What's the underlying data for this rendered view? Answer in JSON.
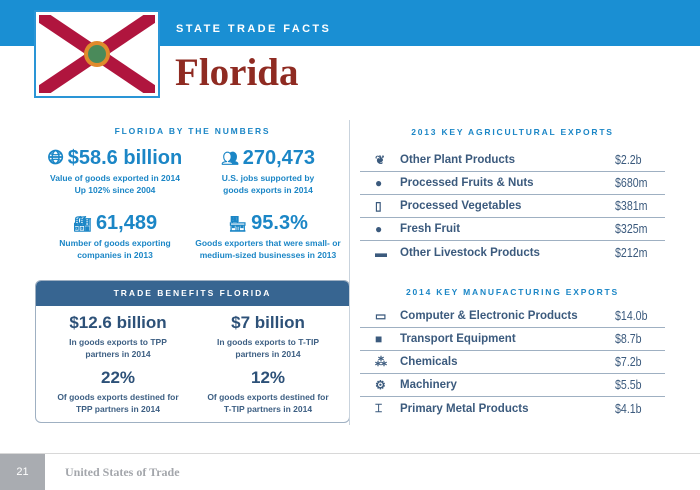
{
  "header": {
    "kicker": "STATE TRADE FACTS",
    "title": "Florida"
  },
  "numbers": {
    "heading": "FLORIDA BY THE NUMBERS",
    "stats": [
      {
        "icon": "globe-icon",
        "value": "$58.6 billion",
        "line1": "Value of goods exported in 2014",
        "line2": "Up 102% since 2004"
      },
      {
        "icon": "workers-icon",
        "value": "270,473",
        "line1": "U.S. jobs supported by",
        "line2": "goods exports in 2014"
      },
      {
        "icon": "factory-icon",
        "value": "61,489",
        "line1": "Number of goods exporting",
        "line2": "companies in 2013"
      },
      {
        "icon": "storefront-icon",
        "value": "95.3%",
        "line1": "Goods exporters that were small- or",
        "line2": "medium-sized businesses in 2013"
      }
    ]
  },
  "benefits": {
    "heading": "TRADE BENEFITS FLORIDA",
    "stats": [
      {
        "value": "$12.6 billion",
        "line1": "In goods exports to TPP",
        "line2": "partners in 2014"
      },
      {
        "value": "$7 billion",
        "line1": "In goods exports to T-TIP",
        "line2": "partners in 2014"
      },
      {
        "value": "22%",
        "line1": "Of goods exports destined for",
        "line2": "TPP partners in 2014"
      },
      {
        "value": "12%",
        "line1": "Of goods exports destined for",
        "line2": "T-TIP partners in 2014"
      }
    ]
  },
  "agri": {
    "heading": "2013 KEY AGRICULTURAL EXPORTS",
    "items": [
      {
        "icon": "plant-icon",
        "label": "Other Plant Products",
        "value": "$2.2b"
      },
      {
        "icon": "acorn-icon",
        "label": "Processed Fruits & Nuts",
        "value": "$680m"
      },
      {
        "icon": "jar-icon",
        "label": "Processed Vegetables",
        "value": "$381m"
      },
      {
        "icon": "fruit-icon",
        "label": "Fresh Fruit",
        "value": "$325m"
      },
      {
        "icon": "cow-icon",
        "label": "Other Livestock Products",
        "value": "$212m"
      }
    ]
  },
  "manu": {
    "heading": "2014 KEY MANUFACTURING EXPORTS",
    "items": [
      {
        "icon": "computer-icon",
        "label": "Computer & Electronic Products",
        "value": "$14.0b"
      },
      {
        "icon": "truck-icon",
        "label": "Transport Equipment",
        "value": "$8.7b"
      },
      {
        "icon": "molecule-icon",
        "label": "Chemicals",
        "value": "$7.2b"
      },
      {
        "icon": "gears-icon",
        "label": "Machinery",
        "value": "$5.5b"
      },
      {
        "icon": "metal-beam-icon",
        "label": "Primary Metal Products",
        "value": "$4.1b"
      }
    ]
  },
  "footer": {
    "page": "21",
    "brand": "United States of Trade"
  },
  "colors": {
    "header_blue": "#1a8fd3",
    "title_red": "#8f2b22",
    "navy": "#376591"
  }
}
